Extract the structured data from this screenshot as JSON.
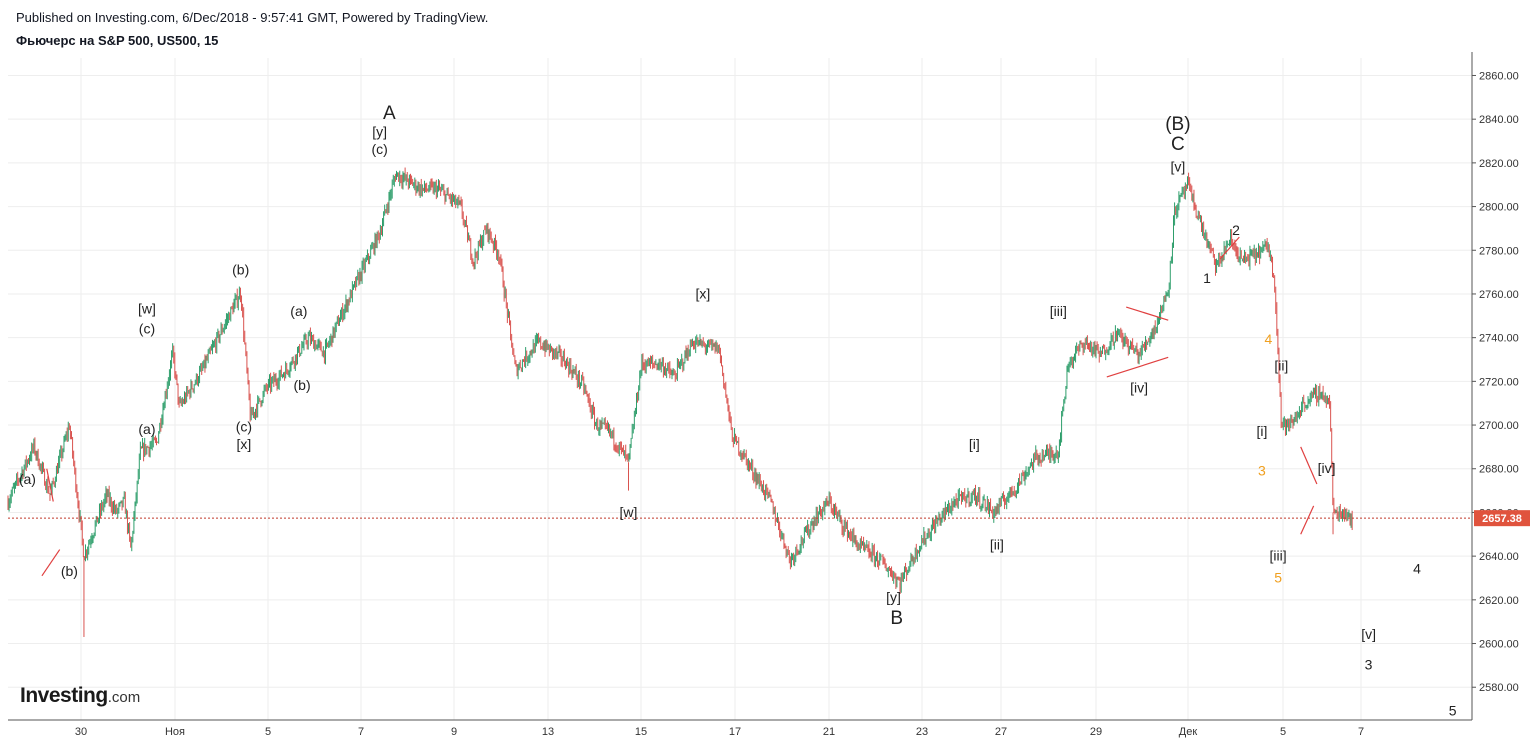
{
  "header": {
    "published": "Published on Investing.com, 6/Dec/2018 - 9:57:41 GMT, Powered by TradingView.",
    "symbol": "Фьючерс на S&P 500, US500, 15"
  },
  "logo": {
    "brand": "Investing",
    "tld": ".com"
  },
  "colors": {
    "up": "#2e9e6b",
    "down": "#d9534f",
    "grid": "#eeeeee",
    "price_line": "#c0392b",
    "price_tag": "#e0533d",
    "orange_label": "#f0a020",
    "trendline": "#e04040"
  },
  "chart_data": {
    "type": "candlestick",
    "title": "Фьючерс на S&P 500, US500, 15",
    "ylim": [
      2565,
      2868
    ],
    "y_ticks": [
      "2580.00",
      "2600.00",
      "2620.00",
      "2640.00",
      "2660.00",
      "2680.00",
      "2700.00",
      "2720.00",
      "2740.00",
      "2760.00",
      "2780.00",
      "2800.00",
      "2820.00",
      "2840.00",
      "2860.00"
    ],
    "x_ticks": [
      "30",
      "Ноя",
      "5",
      "7",
      "9",
      "13",
      "15",
      "17",
      "21",
      "23",
      "27",
      "29",
      "Дек",
      "5",
      "7"
    ],
    "last_price": "2657.38",
    "grid": true,
    "anchors": [
      {
        "d": 0,
        "p": 2665
      },
      {
        "d": 0.8,
        "p": 2690
      },
      {
        "d": 1.3,
        "p": 2668
      },
      {
        "d": 1.9,
        "p": 2700
      },
      {
        "d": 2.35,
        "p": 2640
      },
      {
        "d": 2.6,
        "p": 2650
      },
      {
        "d": 3.05,
        "p": 2668
      },
      {
        "d": 3.35,
        "p": 2660
      },
      {
        "d": 3.6,
        "p": 2665
      },
      {
        "d": 3.8,
        "p": 2643
      },
      {
        "d": 4.1,
        "p": 2688
      },
      {
        "d": 4.6,
        "p": 2692
      },
      {
        "d": 5.1,
        "p": 2733
      },
      {
        "d": 5.3,
        "p": 2708
      },
      {
        "d": 6.0,
        "p": 2725
      },
      {
        "d": 6.5,
        "p": 2740
      },
      {
        "d": 7.2,
        "p": 2761
      },
      {
        "d": 7.5,
        "p": 2703
      },
      {
        "d": 8.0,
        "p": 2717
      },
      {
        "d": 8.6,
        "p": 2725
      },
      {
        "d": 9.3,
        "p": 2740
      },
      {
        "d": 9.8,
        "p": 2733
      },
      {
        "d": 10.3,
        "p": 2750
      },
      {
        "d": 11.0,
        "p": 2772
      },
      {
        "d": 11.5,
        "p": 2788
      },
      {
        "d": 12.0,
        "p": 2815
      },
      {
        "d": 12.8,
        "p": 2808
      },
      {
        "d": 13.3,
        "p": 2808
      },
      {
        "d": 14.0,
        "p": 2800
      },
      {
        "d": 14.4,
        "p": 2775
      },
      {
        "d": 14.8,
        "p": 2790
      },
      {
        "d": 15.2,
        "p": 2778
      },
      {
        "d": 15.7,
        "p": 2725
      },
      {
        "d": 16.4,
        "p": 2738
      },
      {
        "d": 17.2,
        "p": 2730
      },
      {
        "d": 17.8,
        "p": 2718
      },
      {
        "d": 18.2,
        "p": 2700
      },
      {
        "d": 18.6,
        "p": 2697
      },
      {
        "d": 19.2,
        "p": 2683
      },
      {
        "d": 19.6,
        "p": 2728
      },
      {
        "d": 20.2,
        "p": 2728
      },
      {
        "d": 20.6,
        "p": 2722
      },
      {
        "d": 21.2,
        "p": 2738
      },
      {
        "d": 21.6,
        "p": 2736
      },
      {
        "d": 22.0,
        "p": 2735
      },
      {
        "d": 22.4,
        "p": 2695
      },
      {
        "d": 23.0,
        "p": 2680
      },
      {
        "d": 23.6,
        "p": 2665
      },
      {
        "d": 24.2,
        "p": 2638
      },
      {
        "d": 25.0,
        "p": 2658
      },
      {
        "d": 25.4,
        "p": 2665
      },
      {
        "d": 25.8,
        "p": 2655
      },
      {
        "d": 26.3,
        "p": 2645
      },
      {
        "d": 27.0,
        "p": 2638
      },
      {
        "d": 27.6,
        "p": 2628
      },
      {
        "d": 28.2,
        "p": 2645
      },
      {
        "d": 28.7,
        "p": 2655
      },
      {
        "d": 29.3,
        "p": 2665
      },
      {
        "d": 29.9,
        "p": 2668
      },
      {
        "d": 30.5,
        "p": 2660
      },
      {
        "d": 31.2,
        "p": 2672
      },
      {
        "d": 31.8,
        "p": 2685
      },
      {
        "d": 32.5,
        "p": 2688
      },
      {
        "d": 32.8,
        "p": 2728
      },
      {
        "d": 33.3,
        "p": 2738
      },
      {
        "d": 33.8,
        "p": 2732
      },
      {
        "d": 34.3,
        "p": 2742
      },
      {
        "d": 35.0,
        "p": 2732
      },
      {
        "d": 35.5,
        "p": 2745
      },
      {
        "d": 35.9,
        "p": 2762
      },
      {
        "d": 36.1,
        "p": 2798
      },
      {
        "d": 36.5,
        "p": 2810
      },
      {
        "d": 37.0,
        "p": 2788
      },
      {
        "d": 37.4,
        "p": 2772
      },
      {
        "d": 37.8,
        "p": 2785
      },
      {
        "d": 38.2,
        "p": 2775
      },
      {
        "d": 38.6,
        "p": 2778
      },
      {
        "d": 39.0,
        "p": 2782
      },
      {
        "d": 39.2,
        "p": 2765
      },
      {
        "d": 39.4,
        "p": 2700
      },
      {
        "d": 39.7,
        "p": 2700
      },
      {
        "d": 40.1,
        "p": 2710
      },
      {
        "d": 40.6,
        "p": 2715
      },
      {
        "d": 40.9,
        "p": 2710
      },
      {
        "d": 41.0,
        "p": 2660
      },
      {
        "d": 41.4,
        "p": 2660
      },
      {
        "d": 41.6,
        "p": 2657
      }
    ],
    "spikes": [
      {
        "d": 2.35,
        "low": 2603
      },
      {
        "d": 19.2,
        "low": 2670
      },
      {
        "d": 27.6,
        "low": 2624
      },
      {
        "d": 41.0,
        "low": 2650
      }
    ],
    "wave_labels": [
      {
        "text": "(a)",
        "d": 0.6,
        "p": 2673,
        "size": "small",
        "color": "dark"
      },
      {
        "text": "(b)",
        "d": 1.9,
        "p": 2631,
        "size": "small",
        "color": "dark"
      },
      {
        "text": "[w]",
        "d": 4.3,
        "p": 2751,
        "size": "small",
        "color": "dark"
      },
      {
        "text": "(c)",
        "d": 4.3,
        "p": 2742,
        "size": "small",
        "color": "dark"
      },
      {
        "text": "(a)",
        "d": 4.3,
        "p": 2696,
        "size": "small",
        "color": "dark"
      },
      {
        "text": "(b)",
        "d": 7.2,
        "p": 2769,
        "size": "small",
        "color": "dark"
      },
      {
        "text": "(c)",
        "d": 7.3,
        "p": 2697,
        "size": "small",
        "color": "dark"
      },
      {
        "text": "[x]",
        "d": 7.3,
        "p": 2689,
        "size": "small",
        "color": "dark"
      },
      {
        "text": "(a)",
        "d": 9.0,
        "p": 2750,
        "size": "small",
        "color": "dark"
      },
      {
        "text": "(b)",
        "d": 9.1,
        "p": 2716,
        "size": "small",
        "color": "dark"
      },
      {
        "text": "[y]",
        "d": 11.5,
        "p": 2832,
        "size": "small",
        "color": "dark"
      },
      {
        "text": "(c)",
        "d": 11.5,
        "p": 2824,
        "size": "small",
        "color": "dark"
      },
      {
        "text": "A",
        "d": 11.8,
        "p": 2840,
        "size": "big",
        "color": "dark"
      },
      {
        "text": "[w]",
        "d": 19.2,
        "p": 2658,
        "size": "small",
        "color": "dark"
      },
      {
        "text": "[x]",
        "d": 21.5,
        "p": 2758,
        "size": "small",
        "color": "dark"
      },
      {
        "text": "[y]",
        "d": 27.4,
        "p": 2619,
        "size": "small",
        "color": "dark"
      },
      {
        "text": "B",
        "d": 27.5,
        "p": 2609,
        "size": "big",
        "color": "dark"
      },
      {
        "text": "[i]",
        "d": 29.9,
        "p": 2689,
        "size": "small",
        "color": "dark"
      },
      {
        "text": "[ii]",
        "d": 30.6,
        "p": 2643,
        "size": "small",
        "color": "dark"
      },
      {
        "text": "[iii]",
        "d": 32.5,
        "p": 2750,
        "size": "small",
        "color": "dark"
      },
      {
        "text": "[iv]",
        "d": 35.0,
        "p": 2715,
        "size": "small",
        "color": "dark"
      },
      {
        "text": "(B)",
        "d": 36.2,
        "p": 2835,
        "size": "big",
        "color": "dark"
      },
      {
        "text": "C",
        "d": 36.2,
        "p": 2826,
        "size": "big",
        "color": "dark"
      },
      {
        "text": "[v]",
        "d": 36.2,
        "p": 2816,
        "size": "small",
        "color": "dark"
      },
      {
        "text": "2",
        "d": 38.0,
        "p": 2787,
        "size": "small",
        "color": "dark"
      },
      {
        "text": "1",
        "d": 37.1,
        "p": 2765,
        "size": "small",
        "color": "dark"
      },
      {
        "text": "4",
        "d": 39.0,
        "p": 2737,
        "size": "small",
        "color": "orange"
      },
      {
        "text": "[ii]",
        "d": 39.4,
        "p": 2725,
        "size": "small",
        "color": "dark"
      },
      {
        "text": "[i]",
        "d": 38.8,
        "p": 2695,
        "size": "small",
        "color": "dark"
      },
      {
        "text": "3",
        "d": 38.8,
        "p": 2677,
        "size": "small",
        "color": "orange"
      },
      {
        "text": "[iv]",
        "d": 40.8,
        "p": 2678,
        "size": "small",
        "color": "dark"
      },
      {
        "text": "[iii]",
        "d": 39.3,
        "p": 2638,
        "size": "small",
        "color": "dark"
      },
      {
        "text": "5",
        "d": 39.3,
        "p": 2628,
        "size": "small",
        "color": "orange"
      },
      {
        "text": "4",
        "d": 43.6,
        "p": 2632,
        "size": "small",
        "color": "dark"
      },
      {
        "text": "[v]",
        "d": 42.1,
        "p": 2602,
        "size": "small",
        "color": "dark"
      },
      {
        "text": "3",
        "d": 42.1,
        "p": 2588,
        "size": "small",
        "color": "dark"
      },
      {
        "text": "5",
        "d": 44.7,
        "p": 2567,
        "size": "small",
        "color": "dark"
      }
    ],
    "trendlines": [
      {
        "d1": 1.2,
        "p1": 2680,
        "d2": 1.4,
        "p2": 2665
      },
      {
        "d1": 1.05,
        "p1": 2631,
        "d2": 1.6,
        "p2": 2643
      },
      {
        "d1": 34.6,
        "p1": 2754,
        "d2": 35.9,
        "p2": 2748
      },
      {
        "d1": 34.0,
        "p1": 2722,
        "d2": 35.9,
        "p2": 2731
      },
      {
        "d1": 37.5,
        "p1": 2776,
        "d2": 38.1,
        "p2": 2786
      },
      {
        "d1": 40.0,
        "p1": 2690,
        "d2": 40.5,
        "p2": 2673
      },
      {
        "d1": 40.0,
        "p1": 2650,
        "d2": 40.4,
        "p2": 2663
      }
    ]
  }
}
